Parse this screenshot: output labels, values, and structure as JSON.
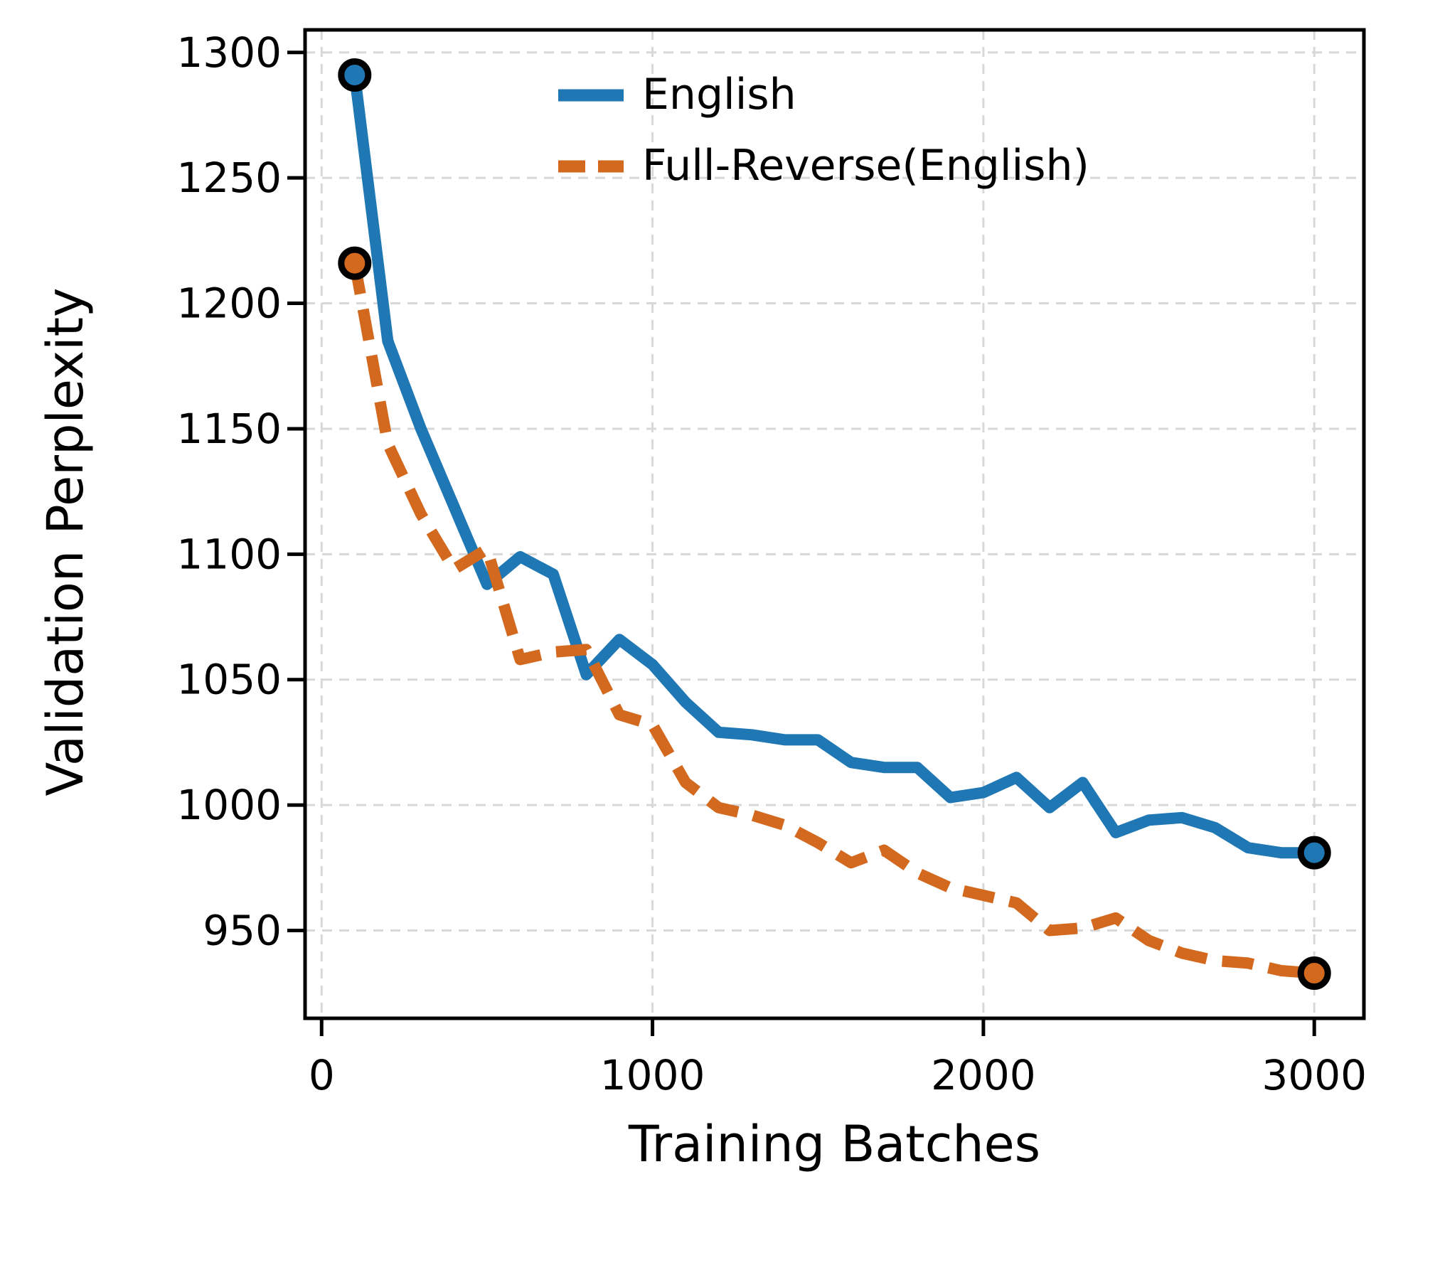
{
  "figure": {
    "background": "#ffffff",
    "text_color": "#000000",
    "grid_color": "#d8d8d8"
  },
  "chart_data": {
    "type": "line",
    "title": "",
    "xlabel": "Training Batches",
    "ylabel": "Validation Perplexity",
    "xlim": [
      -50,
      3150
    ],
    "ylim": [
      915,
      1309
    ],
    "x_ticks": [
      0,
      1000,
      2000,
      3000
    ],
    "y_ticks": [
      950,
      1000,
      1050,
      1100,
      1150,
      1200,
      1250,
      1300
    ],
    "grid": true,
    "grid_style": "dashed",
    "legend_position": "upper right",
    "markers": "first_and_last_point",
    "marker_edge_color": "#000000",
    "x": [
      100,
      200,
      300,
      400,
      500,
      600,
      700,
      800,
      900,
      1000,
      1100,
      1200,
      1300,
      1400,
      1500,
      1600,
      1700,
      1800,
      1900,
      2000,
      2100,
      2200,
      2300,
      2400,
      2500,
      2600,
      2700,
      2800,
      2900,
      3000
    ],
    "series": [
      {
        "name": "English",
        "color": "#1f77b4",
        "style": "solid",
        "values": [
          1291,
          1185,
          1150,
          1119,
          1088,
          1099,
          1092,
          1052,
          1066,
          1056,
          1041,
          1029,
          1028,
          1026,
          1026,
          1017,
          1015,
          1015,
          1003,
          1005,
          1011,
          999,
          1009,
          989,
          994,
          995,
          991,
          983,
          981,
          981
        ]
      },
      {
        "name": "Full-Reverse(English)",
        "color": "#d2691e",
        "style": "dashed",
        "values": [
          1216,
          1144,
          1116,
          1094,
          1102,
          1058,
          1061,
          1062,
          1036,
          1032,
          1009,
          999,
          996,
          992,
          985,
          977,
          982,
          973,
          967,
          964,
          961,
          950,
          951,
          955,
          946,
          941,
          938,
          937,
          934,
          933
        ]
      }
    ]
  }
}
